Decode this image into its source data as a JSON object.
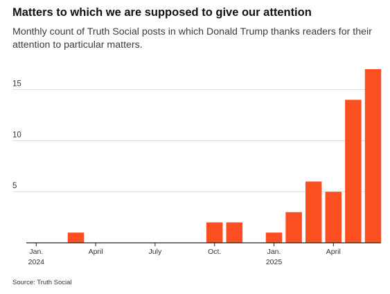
{
  "title": "Matters to which we are supposed to give our attention",
  "subtitle": "Monthly count of Truth Social posts in which Donald Trump thanks readers for their attention to particular matters.",
  "source": "Source: Truth Social",
  "colors": {
    "bar": "#fc4f21",
    "grid": "#dcdcdc",
    "axis": "#222222",
    "tick_text": "#333333"
  },
  "chart_data": {
    "type": "bar",
    "title": "Matters to which we are supposed to give our attention",
    "subtitle": "Monthly count of Truth Social posts in which Donald Trump thanks readers for their attention to particular matters.",
    "x": [
      "2024-01",
      "2024-02",
      "2024-03",
      "2024-04",
      "2024-05",
      "2024-06",
      "2024-07",
      "2024-08",
      "2024-09",
      "2024-10",
      "2024-11",
      "2024-12",
      "2025-01",
      "2025-02",
      "2025-03",
      "2025-04",
      "2025-05",
      "2025-06"
    ],
    "values": [
      0,
      0,
      1,
      0,
      0,
      0,
      0,
      0,
      0,
      2,
      2,
      0,
      1,
      3,
      6,
      5,
      14,
      17
    ],
    "ylim": [
      0,
      17
    ],
    "yticks": [
      5,
      10,
      15
    ],
    "xticks": [
      {
        "month": "2024-01",
        "label": "Jan.",
        "sublabel": "2024"
      },
      {
        "month": "2024-04",
        "label": "April",
        "sublabel": ""
      },
      {
        "month": "2024-07",
        "label": "July",
        "sublabel": ""
      },
      {
        "month": "2024-10",
        "label": "Oct.",
        "sublabel": ""
      },
      {
        "month": "2025-01",
        "label": "Jan.",
        "sublabel": "2025"
      },
      {
        "month": "2025-04",
        "label": "April",
        "sublabel": ""
      }
    ],
    "grid": true,
    "legend": "none"
  }
}
